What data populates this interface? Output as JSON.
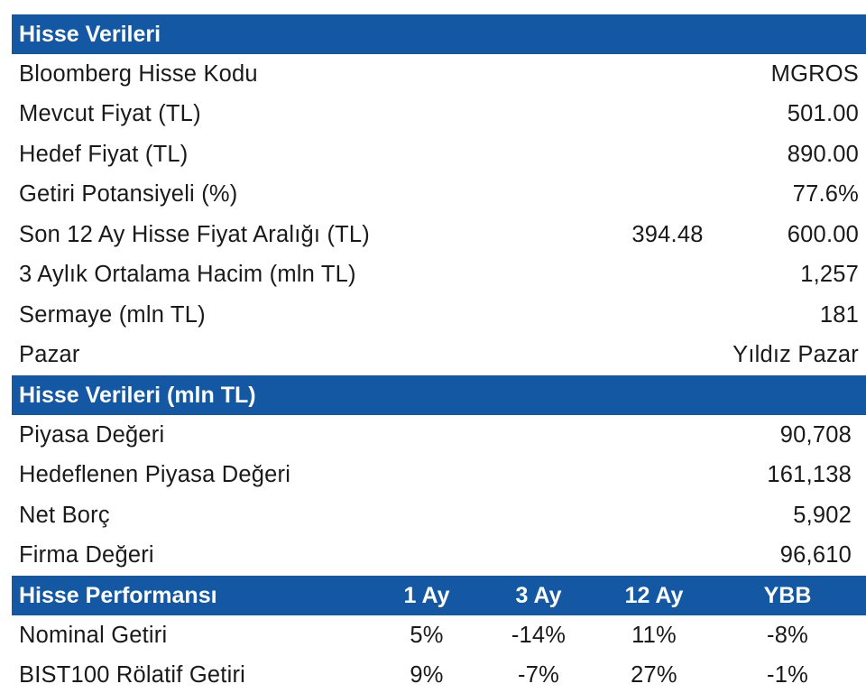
{
  "section1": {
    "title": "Hisse Verileri",
    "rows": [
      {
        "label": "Bloomberg Hisse Kodu",
        "value": "MGROS"
      },
      {
        "label": "Mevcut Fiyat (TL)",
        "value": "501.00"
      },
      {
        "label": "Hedef Fiyat (TL)",
        "value": "890.00"
      },
      {
        "label": "Getiri Potansiyeli (%)",
        "value": "77.6%"
      },
      {
        "label": "Son 12 Ay Hisse Fiyat Aralığı (TL)",
        "low": "394.48",
        "value": "600.00"
      },
      {
        "label": "3 Aylık Ortalama Hacim (mln TL)",
        "value": "1,257"
      },
      {
        "label": "Sermaye (mln TL)",
        "value": "181"
      },
      {
        "label": "Pazar",
        "value": "Yıldız Pazar"
      }
    ]
  },
  "section2": {
    "title": "Hisse Verileri (mln TL)",
    "rows": [
      {
        "label": "Piyasa Değeri",
        "value": "90,708"
      },
      {
        "label": "Hedeflenen Piyasa Değeri",
        "value": "161,138"
      },
      {
        "label": "Net Borç",
        "value": "5,902"
      },
      {
        "label": "Firma Değeri",
        "value": "96,610"
      }
    ]
  },
  "section3": {
    "title": "Hisse Performansı",
    "columns": [
      "1 Ay",
      "3 Ay",
      "12 Ay",
      "YBB"
    ],
    "rows": [
      {
        "label": "Nominal Getiri",
        "values": [
          "5%",
          "-14%",
          "11%",
          "-8%"
        ]
      },
      {
        "label": "BIST100 Rölatif Getiri",
        "values": [
          "9%",
          "-7%",
          "27%",
          "-1%"
        ]
      }
    ]
  },
  "colors": {
    "header_bg": "#1457a3",
    "header_text": "#ffffff",
    "body_text": "#1a1a1a"
  }
}
